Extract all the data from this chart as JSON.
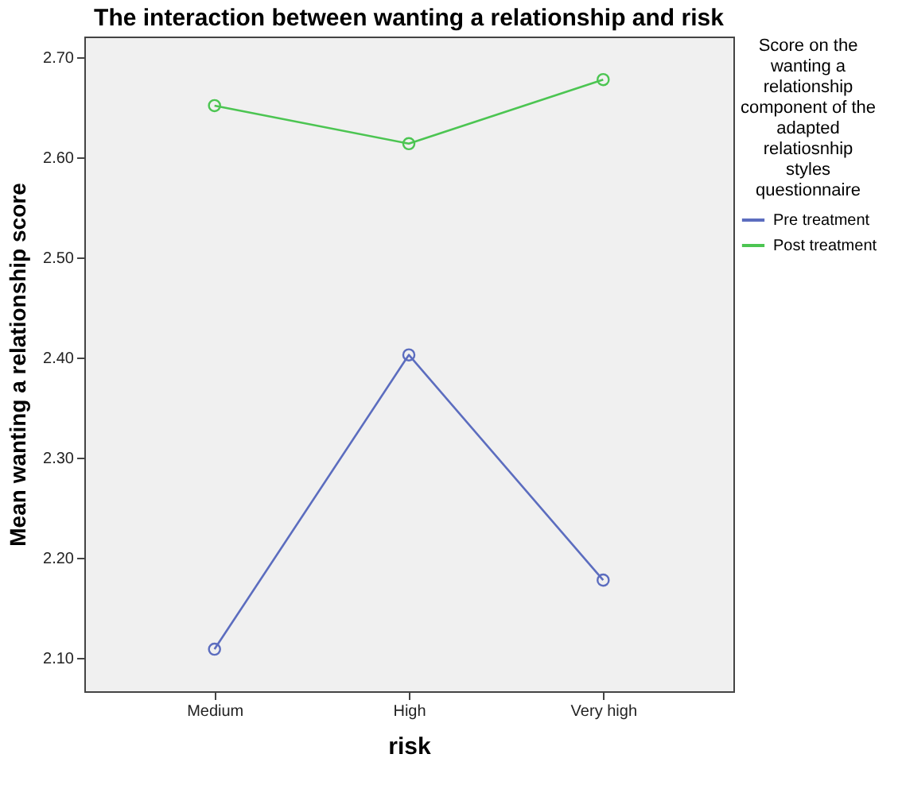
{
  "chart_data": {
    "type": "line",
    "title": "The interaction between wanting a relationship and risk",
    "xlabel": "risk",
    "ylabel": "Mean wanting a relationship score",
    "legend_title": "Score on the wanting a relationship component of the adapted relatiosnhip styles questionnaire",
    "categories": [
      "Medium",
      "High",
      "Very high"
    ],
    "series": [
      {
        "name": "Pre treatment",
        "color": "#5c6dbf",
        "values": [
          2.109,
          2.403,
          2.178
        ]
      },
      {
        "name": "Post treatment",
        "color": "#4cc552",
        "values": [
          2.652,
          2.614,
          2.678
        ]
      }
    ],
    "ylim": [
      2.067,
      2.721
    ],
    "yticks": [
      {
        "value": 2.1,
        "label": "2.10"
      },
      {
        "value": 2.2,
        "label": "2.20"
      },
      {
        "value": 2.3,
        "label": "2.30"
      },
      {
        "value": 2.4,
        "label": "2.40"
      },
      {
        "value": 2.5,
        "label": "2.50"
      },
      {
        "value": 2.6,
        "label": "2.60"
      },
      {
        "value": 2.7,
        "label": "2.70"
      }
    ],
    "grid": false,
    "legend": "top right",
    "marker": "circle",
    "line_style": "solid"
  }
}
